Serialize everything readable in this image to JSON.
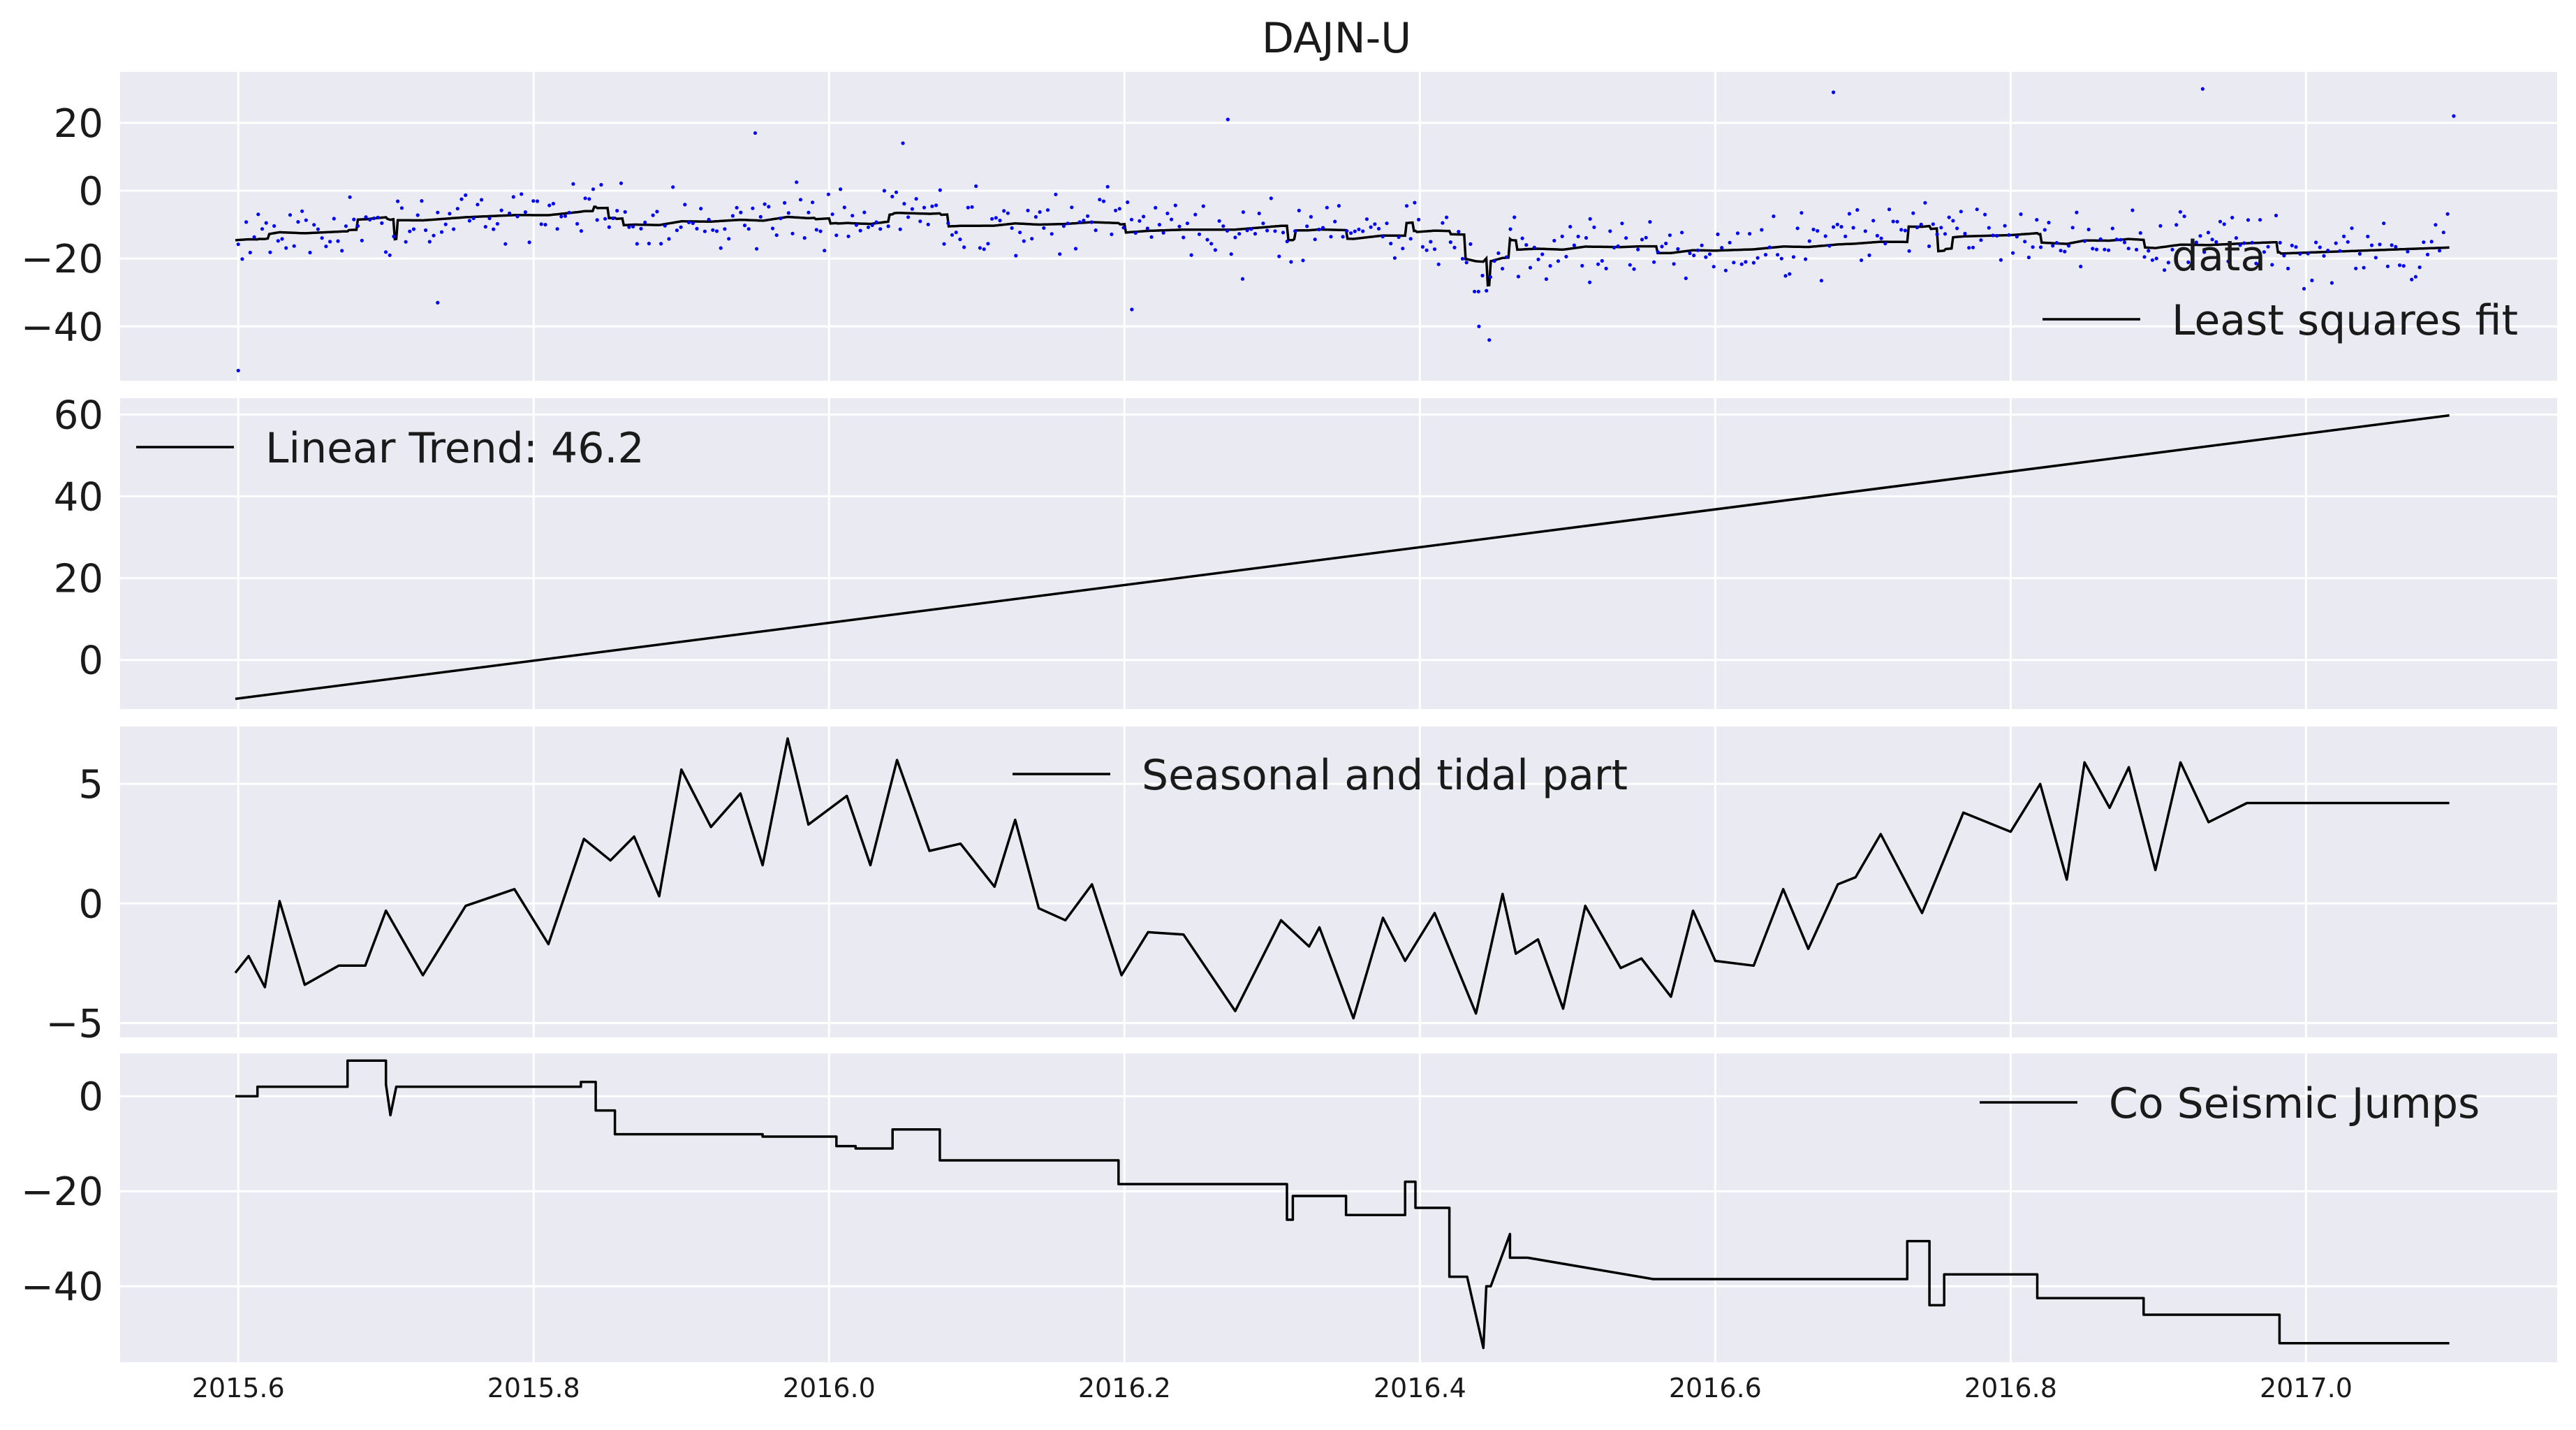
{
  "figure": {
    "title": "DAJN-U",
    "background": "#eaeaf2",
    "grid_color": "#ffffff",
    "line_color": "#000000",
    "data_color": "#0000ff"
  },
  "chart_data": [
    {
      "type": "scatter+line",
      "title": "DAJN-U",
      "xlabel": "",
      "ylabel": "",
      "xlim": [
        2015.52,
        2017.17
      ],
      "ylim": [
        -56,
        35
      ],
      "xticks": [
        2015.6,
        2015.8,
        2016.0,
        2016.2,
        2016.4,
        2016.6,
        2016.8,
        2017.0
      ],
      "xtick_labels": [
        "2015.6",
        "2015.8",
        "2016.0",
        "2016.2",
        "2016.4",
        "2016.6",
        "2016.8",
        "2017.0"
      ],
      "yticks": [
        20,
        0,
        -20,
        -40
      ],
      "ytick_labels": [
        "20",
        "0",
        "−20",
        "−40"
      ],
      "grid": true,
      "legend_position": "right",
      "series": [
        {
          "name": "data",
          "kind": "points",
          "color": "#0000ff",
          "noise_sd": 4.5,
          "outliers": [
            [
              2015.6,
              -53
            ],
            [
              2015.735,
              -33
            ],
            [
              2015.95,
              17
            ],
            [
              2016.05,
              14
            ],
            [
              2016.205,
              -35
            ],
            [
              2016.27,
              21
            ],
            [
              2016.28,
              -26
            ],
            [
              2016.44,
              -40
            ],
            [
              2016.447,
              -44
            ],
            [
              2016.515,
              -27
            ],
            [
              2016.68,
              29
            ],
            [
              2016.93,
              30
            ],
            [
              2017.1,
              22
            ]
          ]
        },
        {
          "name": "Least squares fit",
          "kind": "line",
          "color": "#000000",
          "jumps": [
            [
              2015.62,
              2.5
            ],
            [
              2015.68,
              6
            ],
            [
              2015.705,
              -12
            ],
            [
              2015.707,
              11
            ],
            [
              2015.8,
              0
            ],
            [
              2015.84,
              2.5
            ],
            [
              2015.85,
              -6
            ],
            [
              2015.86,
              -4
            ],
            [
              2015.99,
              -0.8
            ],
            [
              2016.0,
              -3
            ],
            [
              2016.04,
              4
            ],
            [
              2016.08,
              -7
            ],
            [
              2016.2,
              -5
            ],
            [
              2016.31,
              -7.5
            ],
            [
              2016.315,
              5
            ],
            [
              2016.35,
              -4.5
            ],
            [
              2016.39,
              6.5
            ],
            [
              2016.395,
              -5
            ],
            [
              2016.43,
              -14.5
            ],
            [
              2016.445,
              -16
            ],
            [
              2016.447,
              14
            ],
            [
              2016.46,
              11
            ],
            [
              2016.465,
              -5.5
            ],
            [
              2016.56,
              -4
            ],
            [
              2016.73,
              8
            ],
            [
              2016.75,
              -13.5
            ],
            [
              2016.76,
              6.5
            ],
            [
              2016.82,
              -5
            ],
            [
              2016.89,
              -4
            ],
            [
              2016.98,
              -6
            ]
          ]
        }
      ]
    },
    {
      "type": "line",
      "xlim": [
        2015.52,
        2017.17
      ],
      "ylim": [
        -12,
        64
      ],
      "yticks": [
        60,
        40,
        20,
        0
      ],
      "ytick_labels": [
        "60",
        "40",
        "20",
        "0"
      ],
      "grid": true,
      "legend_position": "top-left",
      "series": [
        {
          "name": "Linear Trend: 46.2",
          "x": [
            2015.598,
            2017.097
          ],
          "y": [
            -9.5,
            59.8
          ]
        }
      ]
    },
    {
      "type": "line",
      "xlim": [
        2015.52,
        2017.17
      ],
      "ylim": [
        -5.6,
        7.4
      ],
      "yticks": [
        5,
        0,
        -5
      ],
      "ytick_labels": [
        "5",
        "0",
        "−5"
      ],
      "grid": true,
      "legend_position": "top-center",
      "series": [
        {
          "name": "Seasonal and tidal part",
          "x": [
            2015.598,
            2015.607,
            2015.618,
            2015.628,
            2015.645,
            2015.668,
            2015.686,
            2015.7,
            2015.725,
            2015.754,
            2015.787,
            2015.81,
            2015.834,
            2015.852,
            2015.868,
            2015.885,
            2015.9,
            2015.92,
            2015.94,
            2015.955,
            2015.972,
            2015.986,
            2016.012,
            2016.028,
            2016.046,
            2016.068,
            2016.089,
            2016.112,
            2016.126,
            2016.142,
            2016.16,
            2016.178,
            2016.198,
            2016.216,
            2016.24,
            2016.275,
            2016.306,
            2016.325,
            2016.332,
            2016.355,
            2016.375,
            2016.39,
            2016.41,
            2016.438,
            2016.456,
            2016.465,
            2016.48,
            2016.497,
            2016.512,
            2016.536,
            2016.55,
            2016.57,
            2016.585,
            2016.6,
            2016.626,
            2016.646,
            2016.663,
            2016.683,
            2016.695,
            2016.712,
            2016.74,
            2016.768,
            2016.8,
            2016.82,
            2016.838,
            2016.85,
            2016.867,
            2016.88,
            2016.898,
            2016.915,
            2016.934,
            2016.96,
            2016.976,
            2016.997,
            2017.01,
            2017.036,
            2017.054,
            2017.074,
            2017.097
          ],
          "y": [
            -2.9,
            -2.2,
            -3.5,
            0.1,
            -3.4,
            -2.6,
            -2.6,
            -0.3,
            -3.0,
            -0.1,
            0.6,
            -1.7,
            2.7,
            1.8,
            2.8,
            0.3,
            5.6,
            3.2,
            4.6,
            1.6,
            6.9,
            3.3,
            4.5,
            1.6,
            6.0,
            2.2,
            2.5,
            0.7,
            3.5,
            -0.2,
            -0.7,
            0.8,
            -3.0,
            -1.2,
            -1.3,
            -4.5,
            -0.7,
            -1.8,
            -1.0,
            -4.8,
            -0.6,
            -2.4,
            -0.4,
            -4.6,
            0.4,
            -2.1,
            -1.5,
            -4.4,
            -0.1,
            -2.7,
            -2.3,
            -3.9,
            -0.3,
            -2.4,
            -2.6,
            0.6,
            -1.9,
            0.8,
            1.1,
            2.9,
            -0.4,
            3.8,
            3.0,
            5.0,
            1.0,
            5.9,
            4.0,
            5.7,
            1.4,
            5.9,
            3.4,
            4.2,
            4.2,
            4.2,
            4.2,
            4.2,
            4.2,
            4.2,
            4.2
          ]
        }
      ]
    },
    {
      "type": "line",
      "xlim": [
        2015.52,
        2017.17
      ],
      "ylim": [
        -56,
        9
      ],
      "yticks": [
        0,
        -20,
        -40
      ],
      "ytick_labels": [
        "0",
        "−20",
        "−40"
      ],
      "grid": true,
      "legend_position": "top-right",
      "series": [
        {
          "name": "Co Seismic Jumps",
          "kind": "step",
          "x": [
            2015.598,
            2015.613,
            2015.613,
            2015.674,
            2015.674,
            2015.7,
            2015.7,
            2015.703,
            2015.707,
            2015.707,
            2015.832,
            2015.832,
            2015.842,
            2015.842,
            2015.855,
            2015.855,
            2015.955,
            2015.955,
            2016.005,
            2016.005,
            2016.018,
            2016.018,
            2016.043,
            2016.043,
            2016.075,
            2016.075,
            2016.196,
            2016.196,
            2016.31,
            2016.31,
            2016.314,
            2016.314,
            2016.35,
            2016.35,
            2016.39,
            2016.39,
            2016.397,
            2016.397,
            2016.42,
            2016.42,
            2016.432,
            2016.432,
            2016.443,
            2016.445,
            2016.448,
            2016.448,
            2016.461,
            2016.461,
            2016.473,
            2016.473,
            2016.558,
            2016.558,
            2016.73,
            2016.73,
            2016.745,
            2016.745,
            2016.755,
            2016.755,
            2016.818,
            2016.818,
            2016.89,
            2016.89,
            2016.982,
            2016.982,
            2017.097
          ],
          "y": [
            0,
            0,
            2,
            2,
            7.5,
            7.5,
            2.5,
            -4,
            2,
            2,
            2,
            3,
            3,
            -3,
            -3,
            -8,
            -8,
            -8.5,
            -8.5,
            -10.5,
            -10.5,
            -11,
            -11,
            -7,
            -7,
            -13.5,
            -13.5,
            -18.5,
            -18.5,
            -26,
            -26,
            -21,
            -21,
            -25,
            -25,
            -18,
            -18,
            -23.5,
            -23.5,
            -38,
            -38,
            -38,
            -53,
            -40,
            -40,
            -40,
            -29,
            -34,
            -34,
            -34,
            -38.5,
            -38.5,
            -38.5,
            -30.5,
            -30.5,
            -44,
            -44,
            -37.5,
            -37.5,
            -42.5,
            -42.5,
            -46,
            -46,
            -52,
            -52
          ]
        }
      ]
    }
  ]
}
